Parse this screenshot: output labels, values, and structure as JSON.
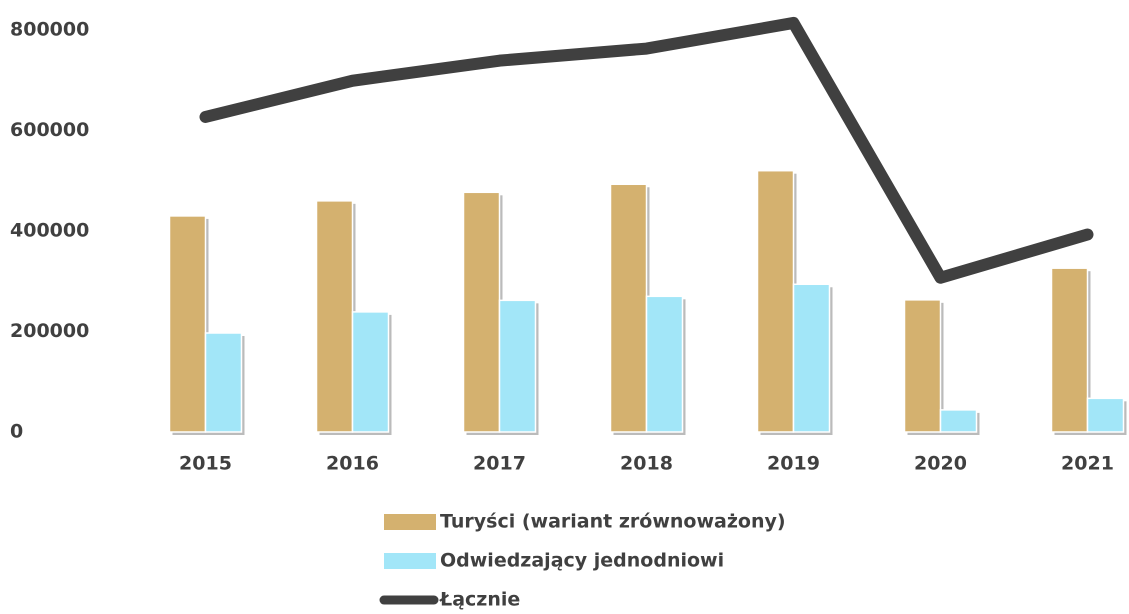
{
  "chart_data": {
    "type": "bar_line",
    "categories": [
      "2015",
      "2016",
      "2017",
      "2018",
      "2019",
      "2020",
      "2021"
    ],
    "series": [
      {
        "name": "Turyści (wariant zrównoważony)",
        "color": "#d4b16f",
        "type": "bar",
        "values": [
          430000,
          460000,
          477000,
          493000,
          520000,
          263000,
          326000
        ]
      },
      {
        "name": "Odwiedzający jednodniowi",
        "color": "#a2e6f8",
        "type": "bar",
        "values": [
          197000,
          239000,
          262000,
          270000,
          294000,
          44000,
          67000
        ]
      },
      {
        "name": "Łącznie",
        "color": "#404040",
        "type": "line",
        "values": [
          627000,
          699000,
          739000,
          763000,
          814000,
          307000,
          393000
        ]
      }
    ],
    "ylim": [
      0,
      800000
    ],
    "yticks": [
      0,
      200000,
      400000,
      600000,
      800000
    ],
    "grid": false,
    "legend": "bottom"
  }
}
